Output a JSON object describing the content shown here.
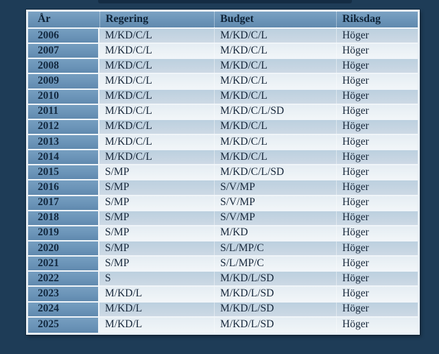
{
  "page": {
    "background_color": "#1e3c57",
    "top_band_color": "#142c44"
  },
  "colors": {
    "header_steel_blue": "#6b94b8",
    "stripe_dark": "#c3d4e1",
    "stripe_light": "#ecf2f6",
    "row_separator": "#f0f5f9",
    "text_dark_navy": "#12283f"
  },
  "table": {
    "columns": [
      {
        "key": "ar",
        "label": "År"
      },
      {
        "key": "regering",
        "label": "Regering"
      },
      {
        "key": "budget",
        "label": "Budget"
      },
      {
        "key": "riksdag",
        "label": "Riksdag"
      }
    ],
    "rows": [
      {
        "ar": "2006",
        "regering": "M/KD/C/L",
        "budget": "M/KD/C/L",
        "riksdag": "Höger"
      },
      {
        "ar": "2007",
        "regering": "M/KD/C/L",
        "budget": "M/KD/C/L",
        "riksdag": "Höger"
      },
      {
        "ar": "2008",
        "regering": "M/KD/C/L",
        "budget": "M/KD/C/L",
        "riksdag": "Höger"
      },
      {
        "ar": "2009",
        "regering": "M/KD/C/L",
        "budget": "M/KD/C/L",
        "riksdag": "Höger"
      },
      {
        "ar": "2010",
        "regering": "M/KD/C/L",
        "budget": "M/KD/C/L",
        "riksdag": "Höger"
      },
      {
        "ar": "2011",
        "regering": "M/KD/C/L",
        "budget": "M/KD/C/L/SD",
        "riksdag": "Höger"
      },
      {
        "ar": "2012",
        "regering": "M/KD/C/L",
        "budget": "M/KD/C/L",
        "riksdag": "Höger"
      },
      {
        "ar": "2013",
        "regering": "M/KD/C/L",
        "budget": "M/KD/C/L",
        "riksdag": "Höger"
      },
      {
        "ar": "2014",
        "regering": "M/KD/C/L",
        "budget": "M/KD/C/L",
        "riksdag": "Höger"
      },
      {
        "ar": "2015",
        "regering": "S/MP",
        "budget": "M/KD/C/L/SD",
        "riksdag": "Höger"
      },
      {
        "ar": "2016",
        "regering": "S/MP",
        "budget": "S/V/MP",
        "riksdag": "Höger"
      },
      {
        "ar": "2017",
        "regering": "S/MP",
        "budget": "S/V/MP",
        "riksdag": "Höger"
      },
      {
        "ar": "2018",
        "regering": "S/MP",
        "budget": "S/V/MP",
        "riksdag": "Höger"
      },
      {
        "ar": "2019",
        "regering": "S/MP",
        "budget": "M/KD",
        "riksdag": "Höger"
      },
      {
        "ar": "2020",
        "regering": "S/MP",
        "budget": "S/L/MP/C",
        "riksdag": "Höger"
      },
      {
        "ar": "2021",
        "regering": "S/MP",
        "budget": "S/L/MP/C",
        "riksdag": "Höger"
      },
      {
        "ar": "2022",
        "regering": "S",
        "budget": "M/KD/L/SD",
        "riksdag": "Höger"
      },
      {
        "ar": "2023",
        "regering": "M/KD/L",
        "budget": "M/KD/L/SD",
        "riksdag": "Höger"
      },
      {
        "ar": "2024",
        "regering": "M/KD/L",
        "budget": "M/KD/L/SD",
        "riksdag": "Höger"
      },
      {
        "ar": "2025",
        "regering": "M/KD/L",
        "budget": "M/KD/L/SD",
        "riksdag": "Höger"
      }
    ]
  }
}
